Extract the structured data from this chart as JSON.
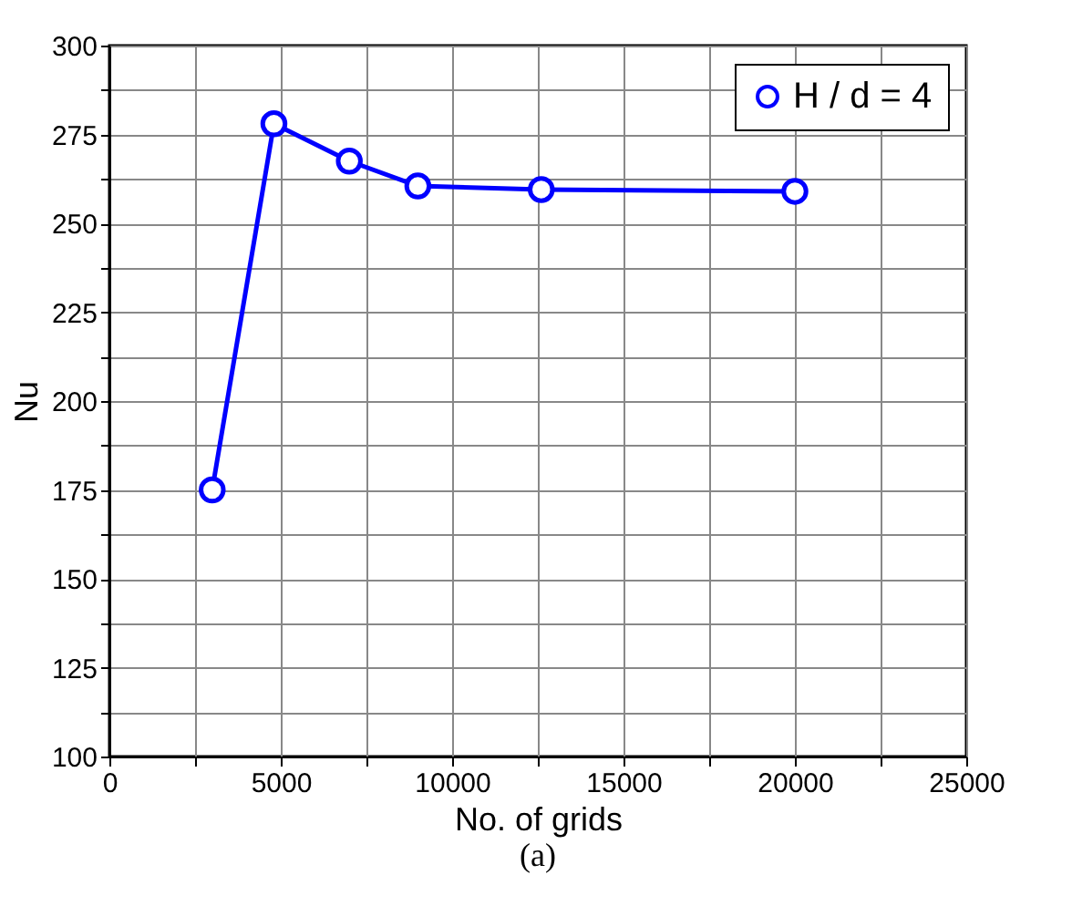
{
  "chart_data": {
    "type": "line",
    "xlabel": "No. of grids",
    "ylabel": "Nu",
    "annotations": [
      "(a)"
    ],
    "x": [
      3000,
      4800,
      7000,
      9000,
      12600,
      20000
    ],
    "series": [
      {
        "name": "H / d = 4",
        "color": "#0000ff",
        "values": [
          175,
          278,
          267.5,
          260.5,
          259.5,
          259
        ]
      }
    ],
    "xlim": [
      0,
      25000
    ],
    "xticks": [
      0,
      {
        "value": 2500,
        "label": null
      },
      5000,
      {
        "value": 7500,
        "label": null
      },
      10000,
      {
        "value": 12500,
        "label": null
      },
      15000,
      {
        "value": 17500,
        "label": null
      },
      20000,
      {
        "value": 22500,
        "label": null
      },
      25000
    ],
    "ylim": [
      100,
      300
    ],
    "yticks": [
      100,
      {
        "value": 112.5,
        "label": null
      },
      125,
      {
        "value": 137.5,
        "label": null
      },
      150,
      {
        "value": 162.5,
        "label": null
      },
      175,
      {
        "value": 187.5,
        "label": null
      },
      200,
      {
        "value": 212.5,
        "label": null
      },
      225,
      {
        "value": 237.5,
        "label": null
      },
      250,
      {
        "value": 262.5,
        "label": null
      },
      275,
      {
        "value": 287.5,
        "label": null
      },
      300
    ],
    "grid": true,
    "legend": "top right",
    "marker": "circle",
    "line_style": "solid"
  }
}
